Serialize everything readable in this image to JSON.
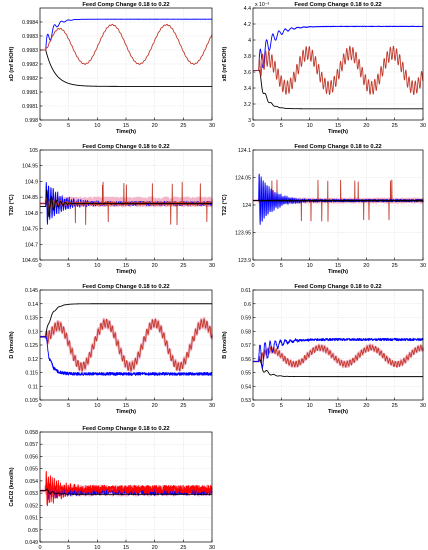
{
  "figure": {
    "background": "#ffffff",
    "colors": {
      "black": "#000000",
      "blue": "#0000ff",
      "red": "#c0392b",
      "pink": "#f5b5c8",
      "darkred": "#7a0f0f"
    }
  },
  "chart_data": [
    {
      "id": "p1",
      "type": "line",
      "title": "Feed Comp Change 0.18 to 0.22",
      "xlabel": "Time(h)",
      "ylabel": "xD (mf EtOH)",
      "xlim": [
        0,
        30
      ],
      "ylim": [
        0.998,
        0.9984
      ],
      "xticks": [
        "0",
        "5",
        "10",
        "15",
        "20",
        "25",
        "30"
      ],
      "yticks": [
        "0.998",
        "0.9981",
        "0.9981",
        "0.9982",
        "0.9982",
        "0.9983",
        "0.9983",
        "0.9984"
      ],
      "ytick_values": [
        0.998,
        0.99805,
        0.9981,
        0.99815,
        0.9982,
        0.99825,
        0.9983,
        0.99835,
        0.9984
      ],
      "exponent_label": "",
      "grid": true,
      "series": [
        {
          "color": "#000000",
          "start": 0.99825,
          "final": 0.99812,
          "settle": 1.6,
          "osc_amp": 0,
          "osc_period": 2,
          "noise": 0,
          "wave_amp": 0
        },
        {
          "color": "#0000ff",
          "start": 0.99825,
          "final": 0.99836,
          "settle": 1.2,
          "osc_amp": 4e-05,
          "osc_period": 1.2,
          "noise": 3e-07,
          "wave_amp": 0
        },
        {
          "color": "#c0392b",
          "start": 0.99825,
          "final": 0.99827,
          "settle": 1.2,
          "osc_amp": 3e-06,
          "osc_period": 0.5,
          "noise": 0,
          "wave_amp": 7e-05,
          "wave_period": 9.5,
          "wave_phase": 0.2
        }
      ]
    },
    {
      "id": "p2",
      "type": "line",
      "title": "Feed Comp Change 0.18 to 0.22",
      "xlabel": "Time(h)",
      "ylabel": "xB (mf EtOH)",
      "xlim": [
        0,
        30
      ],
      "ylim": [
        3.0,
        4.4
      ],
      "xticks": [
        "0",
        "5",
        "10",
        "15",
        "20",
        "25",
        "30"
      ],
      "yticks": [
        "3",
        "3.2",
        "3.4",
        "3.6",
        "3.8",
        "4",
        "4.2",
        "4.4"
      ],
      "ytick_values": [
        3.0,
        3.2,
        3.4,
        3.6,
        3.8,
        4.0,
        4.2,
        4.4
      ],
      "exponent_label": "x 10⁻³",
      "grid": true,
      "series": [
        {
          "color": "#000000",
          "start": 3.62,
          "final": 3.14,
          "settle": 1.1,
          "osc_amp": 0.08,
          "osc_period": 1.0,
          "noise": 0,
          "wave_amp": 0
        },
        {
          "color": "#0000ff",
          "start": 3.62,
          "final": 4.17,
          "settle": 2.0,
          "osc_amp": 0.22,
          "osc_period": 1.1,
          "noise": 0.003,
          "wave_amp": 0
        },
        {
          "color": "#c0392b",
          "start": 3.62,
          "final": 3.62,
          "settle": 1.2,
          "osc_amp": 0.14,
          "osc_period": 0.55,
          "noise": 0,
          "wave_amp": 0.22,
          "wave_period": 7.5,
          "wave_phase": 0.6
        }
      ]
    },
    {
      "id": "p3",
      "type": "line",
      "title": "Feed Comp Change 0.18 to 0.22",
      "xlabel": "Time(h)",
      "ylabel": "T20 (°C)",
      "xlim": [
        0,
        30
      ],
      "ylim": [
        104.65,
        105.0
      ],
      "xticks": [
        "0",
        "5",
        "10",
        "15",
        "20",
        "25",
        "30"
      ],
      "yticks": [
        "104.65",
        "104.7",
        "104.75",
        "104.8",
        "104.85",
        "104.9",
        "104.95",
        "105"
      ],
      "ytick_values": [
        104.65,
        104.7,
        104.75,
        104.8,
        104.85,
        104.9,
        104.95,
        105.0
      ],
      "exponent_label": "",
      "grid": true,
      "series": [
        {
          "color": "#f5b5c8",
          "start": 104.83,
          "final": 104.835,
          "settle": 2.0,
          "osc_amp": 0.01,
          "osc_period": 0.8,
          "noise": 0.012,
          "wave_amp": 0
        },
        {
          "color": "#0000ff",
          "start": 104.83,
          "final": 104.83,
          "settle": 2.5,
          "osc_amp": 0.07,
          "osc_period": 0.4,
          "noise": 0.006,
          "wave_amp": 0
        },
        {
          "color": "#c0392b",
          "start": 104.83,
          "final": 104.83,
          "settle": 1.8,
          "osc_amp": 0.02,
          "osc_period": 0.6,
          "noise": 0.005,
          "wave_amp": 0,
          "spikes": 14
        },
        {
          "color": "#000000",
          "start": 104.82,
          "final": 104.83,
          "settle": 1.2,
          "osc_amp": 0.06,
          "osc_period": 0.8,
          "noise": 0,
          "wave_amp": 0
        }
      ]
    },
    {
      "id": "p4",
      "type": "line",
      "title": "Feed Comp Change 0.18 to 0.22",
      "xlabel": "Time(h)",
      "ylabel": "T22 (°C)",
      "xlim": [
        0,
        30
      ],
      "ylim": [
        123.9,
        124.1
      ],
      "xticks": [
        "0",
        "5",
        "10",
        "15",
        "20",
        "25",
        "30"
      ],
      "yticks": [
        "123.9",
        "123.95",
        "124",
        "124.05",
        "124.1"
      ],
      "ytick_values": [
        123.9,
        123.95,
        124.0,
        124.05,
        124.1
      ],
      "exponent_label": "",
      "grid": true,
      "series": [
        {
          "color": "#f5b5c8",
          "start": 124.008,
          "final": 124.008,
          "settle": 2.0,
          "osc_amp": 0.0,
          "osc_period": 1,
          "noise": 0.003,
          "wave_amp": 0
        },
        {
          "color": "#c0392b",
          "start": 124.008,
          "final": 124.008,
          "settle": 1.0,
          "osc_amp": 0.0,
          "osc_period": 1,
          "noise": 0.002,
          "wave_amp": 0,
          "spikes": 16
        },
        {
          "color": "#0000ff",
          "start": 124.008,
          "final": 124.008,
          "settle": 2.5,
          "osc_amp": 0.05,
          "osc_period": 0.35,
          "noise": 0.002,
          "wave_amp": 0
        },
        {
          "color": "#000000",
          "start": 124.008,
          "final": 124.008,
          "settle": 0.5,
          "osc_amp": 0,
          "osc_period": 1,
          "noise": 0.0008,
          "wave_amp": 0
        }
      ]
    },
    {
      "id": "p5",
      "type": "line",
      "title": "Feed Comp Change 0.18 to 0.22",
      "xlabel": "Time(h)",
      "ylabel": "D (kmol/h)",
      "xlim": [
        0,
        30
      ],
      "ylim": [
        0.105,
        0.145
      ],
      "xticks": [
        "0",
        "5",
        "10",
        "15",
        "20",
        "25",
        "30"
      ],
      "yticks": [
        "0.105",
        "0.11",
        "0.115",
        "0.12",
        "0.125",
        "0.13",
        "0.135",
        "0.14",
        "0.145"
      ],
      "ytick_values": [
        0.105,
        0.11,
        0.115,
        0.12,
        0.125,
        0.13,
        0.135,
        0.14,
        0.145
      ],
      "exponent_label": "",
      "grid": true,
      "series": [
        {
          "color": "#f5b5c8",
          "start": 0.128,
          "final": 0.125,
          "settle": 1.0,
          "osc_amp": 0.002,
          "osc_period": 0.5,
          "noise": 0.0006,
          "wave_amp": 0.008,
          "wave_period": 8.5,
          "wave_phase": 0.1
        },
        {
          "color": "#c0392b",
          "start": 0.128,
          "final": 0.125,
          "settle": 1.0,
          "osc_amp": 0.0025,
          "osc_period": 0.5,
          "noise": 0,
          "wave_amp": 0.008,
          "wave_period": 8.5,
          "wave_phase": 0.1
        },
        {
          "color": "#000000",
          "start": 0.128,
          "final": 0.14,
          "settle": 1.0,
          "osc_amp": 0.001,
          "osc_period": 1.0,
          "noise": 0,
          "wave_amp": 0
        },
        {
          "color": "#0000ff",
          "start": 0.128,
          "final": 0.1145,
          "settle": 0.8,
          "osc_amp": 0.002,
          "osc_period": 0.8,
          "noise": 0.0005,
          "wave_amp": 0
        }
      ]
    },
    {
      "id": "p6",
      "type": "line",
      "title": "Feed Comp Change 0.18 to 0.22",
      "xlabel": "Time(h)",
      "ylabel": "B (kmol/h)",
      "xlim": [
        0,
        30
      ],
      "ylim": [
        0.53,
        0.61
      ],
      "xticks": [
        "0",
        "5",
        "10",
        "15",
        "20",
        "25",
        "30"
      ],
      "yticks": [
        "0.53",
        "0.54",
        "0.55",
        "0.56",
        "0.57",
        "0.58",
        "0.59",
        "0.6",
        "0.61"
      ],
      "ytick_values": [
        0.53,
        0.54,
        0.55,
        0.56,
        0.57,
        0.58,
        0.59,
        0.6,
        0.61
      ],
      "exponent_label": "",
      "grid": true,
      "series": [
        {
          "color": "#f5b5c8",
          "start": 0.558,
          "final": 0.562,
          "settle": 1.0,
          "osc_amp": 0.002,
          "osc_period": 0.5,
          "noise": 0.001,
          "wave_amp": 0.006,
          "wave_period": 9.0,
          "wave_phase": 0.3
        },
        {
          "color": "#c0392b",
          "start": 0.558,
          "final": 0.562,
          "settle": 1.0,
          "osc_amp": 0.003,
          "osc_period": 0.5,
          "noise": 0.0005,
          "wave_amp": 0.006,
          "wave_period": 9.0,
          "wave_phase": 0.3
        },
        {
          "color": "#000000",
          "start": 0.558,
          "final": 0.547,
          "settle": 1.2,
          "osc_amp": 0.004,
          "osc_period": 1.2,
          "noise": 0,
          "wave_amp": 0
        },
        {
          "color": "#0000ff",
          "start": 0.558,
          "final": 0.574,
          "settle": 2.2,
          "osc_amp": 0.012,
          "osc_period": 0.9,
          "noise": 0.0008,
          "wave_amp": 0
        }
      ]
    },
    {
      "id": "p7",
      "type": "line",
      "title": "Feed Comp Change 0.18 to 0.22",
      "xlabel": "Time(h)",
      "ylabel": "CaCl2 (kmol/h)",
      "xlim": [
        0,
        30
      ],
      "ylim": [
        0.049,
        0.058
      ],
      "xticks": [
        "0",
        "5",
        "10",
        "15",
        "20",
        "25",
        "30"
      ],
      "yticks": [
        "0.049",
        "0.05",
        "0.051",
        "0.052",
        "0.053",
        "0.054",
        "0.055",
        "0.056",
        "0.057",
        "0.058"
      ],
      "ytick_values": [
        0.049,
        0.05,
        0.051,
        0.052,
        0.053,
        0.054,
        0.055,
        0.056,
        0.057,
        0.058
      ],
      "exponent_label": "",
      "grid": true,
      "series": [
        {
          "color": "#f5b5c8",
          "start": 0.0532,
          "final": 0.0532,
          "settle": 1.0,
          "osc_amp": 0.0001,
          "osc_period": 0.6,
          "noise": 0.00035,
          "wave_amp": 0
        },
        {
          "color": "#0000ff",
          "start": 0.0532,
          "final": 0.0531,
          "settle": 2.0,
          "osc_amp": 0.0006,
          "osc_period": 0.5,
          "noise": 0.00025,
          "wave_amp": 0
        },
        {
          "color": "#ff0000",
          "start": 0.0532,
          "final": 0.0533,
          "settle": 2.5,
          "osc_amp": 0.0014,
          "osc_period": 0.35,
          "noise": 0.0003,
          "wave_amp": 0
        },
        {
          "color": "#000000",
          "start": 0.0532,
          "final": 0.0529,
          "settle": 1.5,
          "osc_amp": 0.0002,
          "osc_period": 1.0,
          "noise": 0,
          "wave_amp": 0
        }
      ]
    }
  ]
}
